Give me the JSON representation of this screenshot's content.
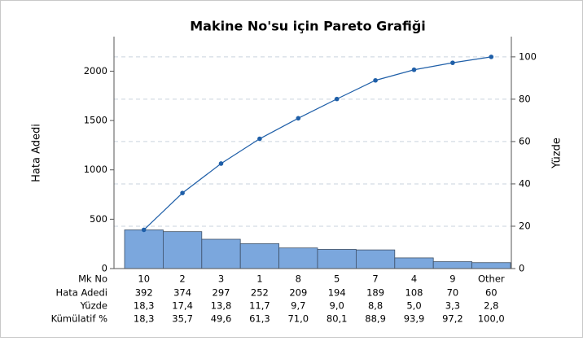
{
  "chart_data": {
    "type": "pareto",
    "title": "Makine No'su için Pareto Grafiği",
    "ylabel": "Hata Adedi",
    "y2label": "Yüzde",
    "xlabel": "Mk No",
    "categories": [
      "10",
      "2",
      "3",
      "1",
      "8",
      "5",
      "7",
      "4",
      "9",
      "Other"
    ],
    "series": [
      {
        "name": "Hata Adedi",
        "color": "#7ba7dd",
        "values": [
          392,
          374,
          297,
          252,
          209,
          194,
          189,
          108,
          70,
          60
        ]
      },
      {
        "name": "Yüzde",
        "values": [
          18.3,
          17.4,
          13.8,
          11.7,
          9.7,
          9.0,
          8.8,
          5.0,
          3.3,
          2.8
        ],
        "value_labels": [
          "18,3",
          "17,4",
          "13,8",
          "11,7",
          "9,7",
          "9,0",
          "8,8",
          "5,0",
          "3,3",
          "2,8"
        ]
      },
      {
        "name": "Kümülatif %",
        "axis": "y2",
        "color": "#1f5fa8",
        "values": [
          18.3,
          35.7,
          49.6,
          61.3,
          71.0,
          80.1,
          88.9,
          93.9,
          97.2,
          100.0
        ],
        "value_labels": [
          "18,3",
          "35,7",
          "49,6",
          "61,3",
          "71,0",
          "80,1",
          "88,9",
          "93,9",
          "97,2",
          "100,0"
        ]
      }
    ],
    "ylim": [
      0,
      2350
    ],
    "yticks": [
      0,
      500,
      1000,
      1500,
      2000
    ],
    "y2lim": [
      0,
      109.56
    ],
    "y2ticks": [
      0,
      20,
      40,
      60,
      80,
      100
    ],
    "grid": true
  }
}
